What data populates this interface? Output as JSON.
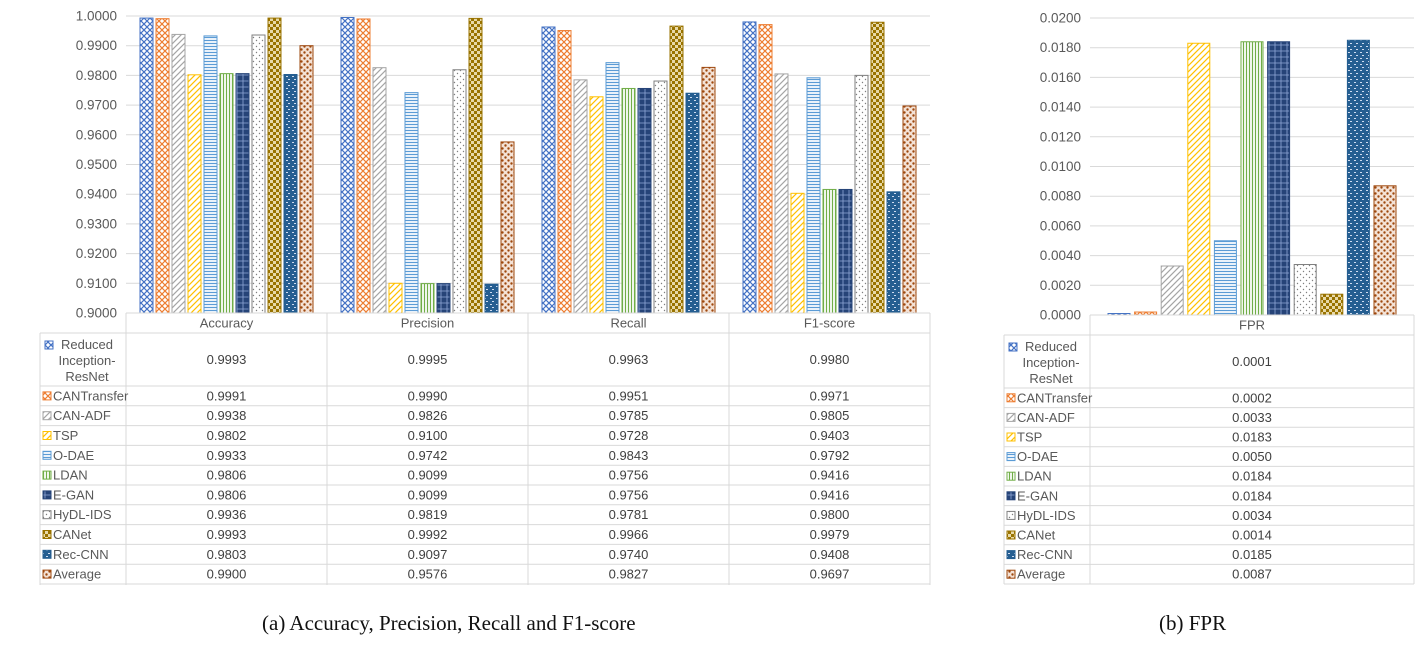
{
  "captions": {
    "a": "(a)  Accuracy, Precision, Recall and F1-score",
    "b": "(b)  FPR"
  },
  "series_styles": [
    {
      "name": "Reduced Inception-ResNet",
      "lines": [
        "Reduced",
        "Inception-",
        "ResNet"
      ],
      "color": "#4472c4",
      "pattern": "diamond"
    },
    {
      "name": "CANTransfer",
      "lines": [
        "CANTransfer"
      ],
      "color": "#ed7d31",
      "pattern": "diamond"
    },
    {
      "name": "CAN-ADF",
      "lines": [
        "CAN-ADF"
      ],
      "color": "#a5a5a5",
      "pattern": "wdiag"
    },
    {
      "name": "TSP",
      "lines": [
        "TSP"
      ],
      "color": "#ffc000",
      "pattern": "ndiag"
    },
    {
      "name": "O-DAE",
      "lines": [
        "O-DAE"
      ],
      "color": "#5b9bd5",
      "pattern": "horiz"
    },
    {
      "name": "LDAN",
      "lines": [
        "LDAN"
      ],
      "color": "#70ad47",
      "pattern": "vert"
    },
    {
      "name": "E-GAN",
      "lines": [
        "E-GAN"
      ],
      "color": "#264478",
      "pattern": "grid"
    },
    {
      "name": "HyDL-IDS",
      "lines": [
        "HyDL-IDS"
      ],
      "color": "#7f7f7f",
      "pattern": "dots"
    },
    {
      "name": "CANet",
      "lines": [
        "CANet"
      ],
      "color": "#997300",
      "pattern": "check"
    },
    {
      "name": "Rec-CNN",
      "lines": [
        "Rec-CNN"
      ],
      "color": "#255e91",
      "pattern": "bricks"
    },
    {
      "name": "Average",
      "lines": [
        "Average"
      ],
      "color": "#9e480e",
      "pattern": "dots2"
    }
  ],
  "chart_data": [
    {
      "type": "bar",
      "categories": [
        "Accuracy",
        "Precision",
        "Recall",
        "F1-score"
      ],
      "ylim": [
        0.9,
        1.0
      ],
      "yticks": [
        "0.9000",
        "0.9100",
        "0.9200",
        "0.9300",
        "0.9400",
        "0.9500",
        "0.9600",
        "0.9700",
        "0.9800",
        "0.9900",
        "1.0000"
      ],
      "series": [
        {
          "name": "Reduced Inception-ResNet",
          "values": [
            0.9993,
            0.9995,
            0.9963,
            0.998
          ]
        },
        {
          "name": "CANTransfer",
          "values": [
            0.9991,
            0.999,
            0.9951,
            0.9971
          ]
        },
        {
          "name": "CAN-ADF",
          "values": [
            0.9938,
            0.9826,
            0.9785,
            0.9805
          ]
        },
        {
          "name": "TSP",
          "values": [
            0.9802,
            0.91,
            0.9728,
            0.9403
          ]
        },
        {
          "name": "O-DAE",
          "values": [
            0.9933,
            0.9742,
            0.9843,
            0.9792
          ]
        },
        {
          "name": "LDAN",
          "values": [
            0.9806,
            0.9099,
            0.9756,
            0.9416
          ]
        },
        {
          "name": "E-GAN",
          "values": [
            0.9806,
            0.9099,
            0.9756,
            0.9416
          ]
        },
        {
          "name": "HyDL-IDS",
          "values": [
            0.9936,
            0.9819,
            0.9781,
            0.98
          ]
        },
        {
          "name": "CANet",
          "values": [
            0.9993,
            0.9992,
            0.9966,
            0.9979
          ]
        },
        {
          "name": "Rec-CNN",
          "values": [
            0.9803,
            0.9097,
            0.974,
            0.9408
          ]
        },
        {
          "name": "Average",
          "values": [
            0.99,
            0.9576,
            0.9827,
            0.9697
          ]
        }
      ],
      "table": {
        "header": [
          "Accuracy",
          "Precision",
          "Recall",
          "F1-score"
        ],
        "rows": [
          [
            "0.9993",
            "0.9995",
            "0.9963",
            "0.9980"
          ],
          [
            "0.9991",
            "0.9990",
            "0.9951",
            "0.9971"
          ],
          [
            "0.9938",
            "0.9826",
            "0.9785",
            "0.9805"
          ],
          [
            "0.9802",
            "0.9100",
            "0.9728",
            "0.9403"
          ],
          [
            "0.9933",
            "0.9742",
            "0.9843",
            "0.9792"
          ],
          [
            "0.9806",
            "0.9099",
            "0.9756",
            "0.9416"
          ],
          [
            "0.9806",
            "0.9099",
            "0.9756",
            "0.9416"
          ],
          [
            "0.9936",
            "0.9819",
            "0.9781",
            "0.9800"
          ],
          [
            "0.9993",
            "0.9992",
            "0.9966",
            "0.9979"
          ],
          [
            "0.9803",
            "0.9097",
            "0.9740",
            "0.9408"
          ],
          [
            "0.9900",
            "0.9576",
            "0.9827",
            "0.9697"
          ]
        ]
      },
      "grid": true
    },
    {
      "type": "bar",
      "categories": [
        "FPR"
      ],
      "ylim": [
        0.0,
        0.02
      ],
      "yticks": [
        "0.0000",
        "0.0020",
        "0.0040",
        "0.0060",
        "0.0080",
        "0.0100",
        "0.0120",
        "0.0140",
        "0.0160",
        "0.0180",
        "0.0200"
      ],
      "series": [
        {
          "name": "Reduced Inception-ResNet",
          "values": [
            0.0001
          ]
        },
        {
          "name": "CANTransfer",
          "values": [
            0.0002
          ]
        },
        {
          "name": "CAN-ADF",
          "values": [
            0.0033
          ]
        },
        {
          "name": "TSP",
          "values": [
            0.0183
          ]
        },
        {
          "name": "O-DAE",
          "values": [
            0.005
          ]
        },
        {
          "name": "LDAN",
          "values": [
            0.0184
          ]
        },
        {
          "name": "E-GAN",
          "values": [
            0.0184
          ]
        },
        {
          "name": "HyDL-IDS",
          "values": [
            0.0034
          ]
        },
        {
          "name": "CANet",
          "values": [
            0.0014
          ]
        },
        {
          "name": "Rec-CNN",
          "values": [
            0.0185
          ]
        },
        {
          "name": "Average",
          "values": [
            0.0087
          ]
        }
      ],
      "table": {
        "header": [
          "FPR"
        ],
        "rows": [
          [
            "0.0001"
          ],
          [
            "0.0002"
          ],
          [
            "0.0033"
          ],
          [
            "0.0183"
          ],
          [
            "0.0050"
          ],
          [
            "0.0184"
          ],
          [
            "0.0184"
          ],
          [
            "0.0034"
          ],
          [
            "0.0014"
          ],
          [
            "0.0185"
          ],
          [
            "0.0087"
          ]
        ]
      },
      "grid": true
    }
  ]
}
